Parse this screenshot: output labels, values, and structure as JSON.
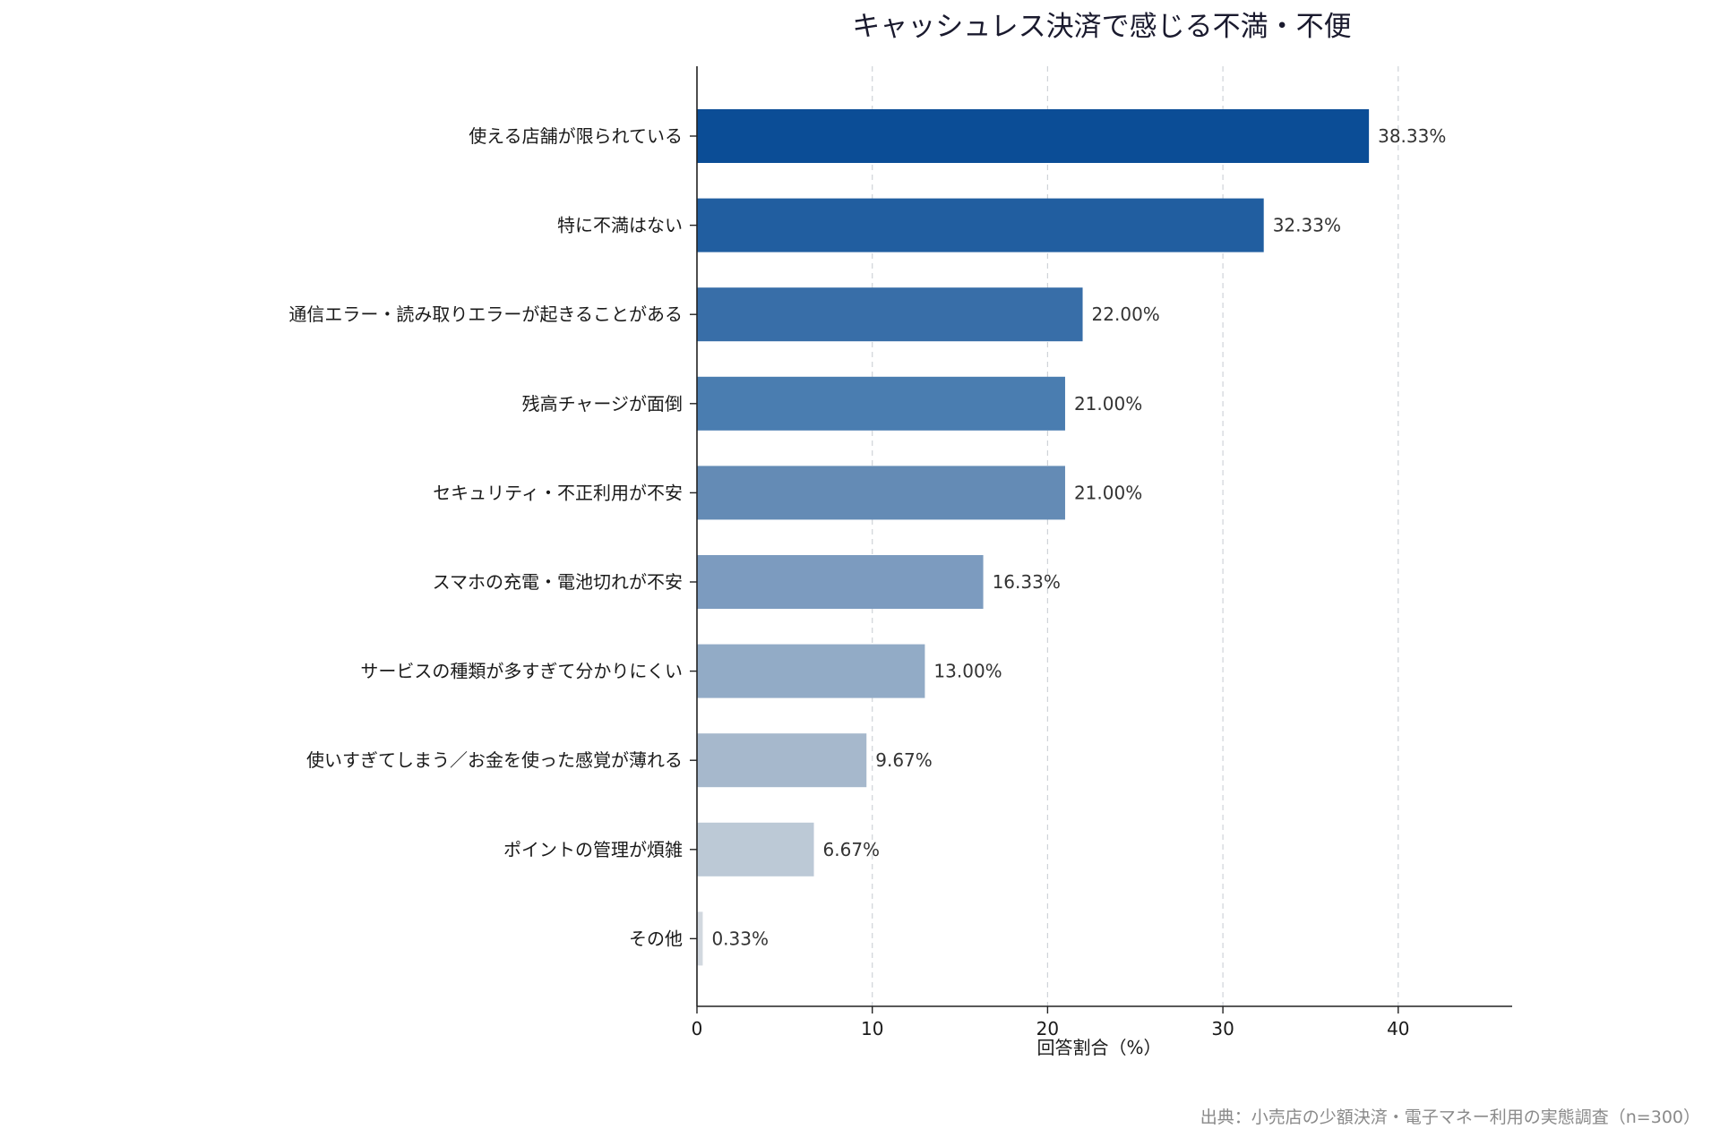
{
  "chart_data": {
    "type": "bar",
    "orientation": "horizontal",
    "title": "キャッシュレス決済で感じる不満・不便",
    "xlabel": "回答割合（%）",
    "ylabel": "",
    "xlim": [
      0,
      46.5
    ],
    "xticks": [
      0,
      10,
      20,
      30,
      40
    ],
    "grid": "vertical dashed",
    "categories": [
      "使える店舗が限られている",
      "特に不満はない",
      "通信エラー・読み取りエラーが起きることがある",
      "残高チャージが面倒",
      "セキュリティ・不正利用が不安",
      "スマホの充電・電池切れが不安",
      "サービスの種類が多すぎて分かりにくい",
      "使いすぎてしまう／お金を使った感覚が薄れる",
      "ポイントの管理が煩雑",
      "その他"
    ],
    "values": [
      38.33,
      32.33,
      22.0,
      21.0,
      21.0,
      16.33,
      13.0,
      9.67,
      6.67,
      0.33
    ],
    "value_labels": [
      "38.33%",
      "32.33%",
      "22.00%",
      "21.00%",
      "21.00%",
      "16.33%",
      "13.00%",
      "9.67%",
      "6.67%",
      "0.33%"
    ],
    "colors": [
      "#0b4d96",
      "#215ea0",
      "#386ea8",
      "#4a7db0",
      "#648bb5",
      "#7c9bbf",
      "#92abc6",
      "#a6b8cc",
      "#bcc9d6",
      "#d2d8df"
    ],
    "source": "出典：小売店の少額決済・電子マネー利用の実態調査（n=300）"
  }
}
